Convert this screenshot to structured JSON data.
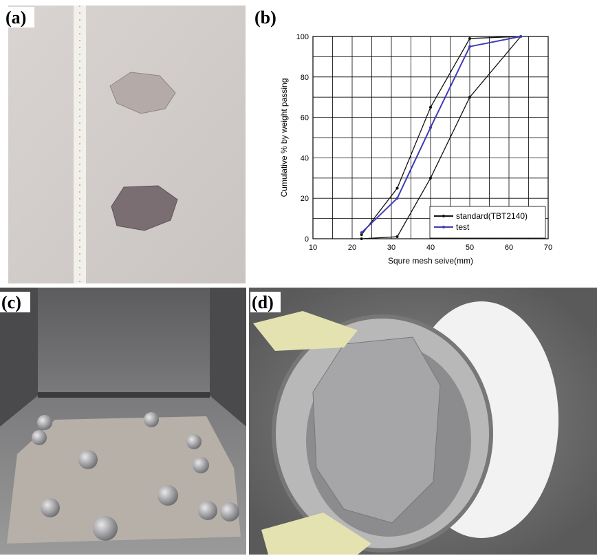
{
  "panels": [
    "(a)",
    "(b)",
    "(c)",
    "(d)"
  ],
  "chart_data": {
    "type": "line",
    "xlabel": "Squre mesh seive(mm)",
    "ylabel": "Cumulative % by weight passing",
    "xlim": [
      10,
      70
    ],
    "xticks": [
      10,
      20,
      30,
      40,
      50,
      60,
      70
    ],
    "ylim": [
      0,
      100
    ],
    "yticks": [
      0,
      20,
      40,
      60,
      80,
      100
    ],
    "grid": true,
    "legend": "lower right",
    "series": [
      {
        "name": "standard(TBT2140)",
        "color": "#111111",
        "x": [
          22.4,
          31.5,
          40,
          50,
          63,
          50,
          40,
          31.5,
          22.4
        ],
        "values": [
          2,
          25,
          65,
          99,
          100,
          70,
          30,
          1,
          0
        ]
      },
      {
        "name": "test",
        "color": "#3c3cb4",
        "x": [
          22.4,
          31.5,
          40,
          50,
          63
        ],
        "values": [
          3,
          20,
          55,
          95,
          100
        ]
      }
    ]
  }
}
